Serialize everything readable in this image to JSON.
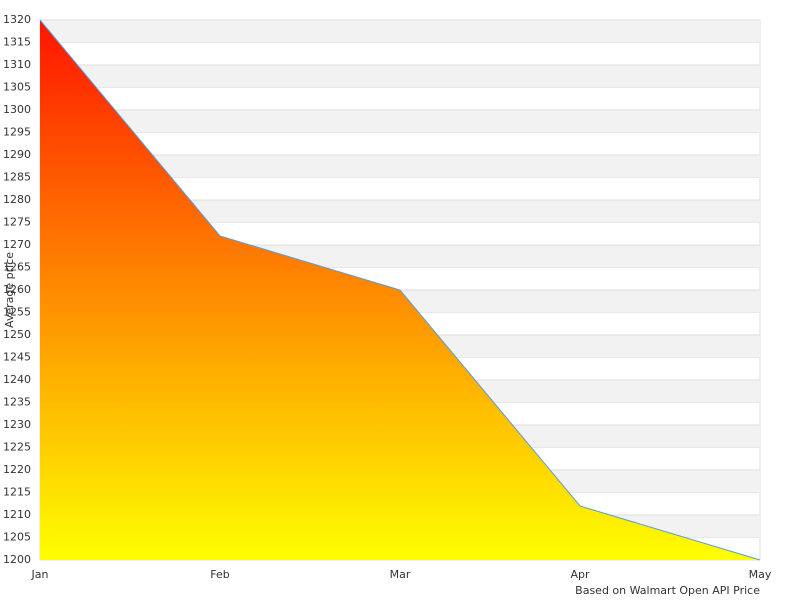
{
  "chart_data": {
    "type": "area",
    "categories": [
      "Jan",
      "Feb",
      "Mar",
      "Apr",
      "May"
    ],
    "values": [
      1320,
      1272,
      1260,
      1212,
      1200
    ],
    "y_label": "Average price",
    "source": "Based on Walmart Open API Price",
    "ylim": [
      1200,
      1320
    ],
    "yticks": [
      1200,
      1205,
      1210,
      1215,
      1220,
      1225,
      1230,
      1235,
      1240,
      1245,
      1250,
      1255,
      1260,
      1265,
      1270,
      1275,
      1280,
      1285,
      1290,
      1295,
      1300,
      1305,
      1310,
      1315,
      1320
    ],
    "grid": true,
    "line_color": "#5b9bd5",
    "fill_gradient": [
      "#ff1500",
      "#ffff00"
    ]
  }
}
